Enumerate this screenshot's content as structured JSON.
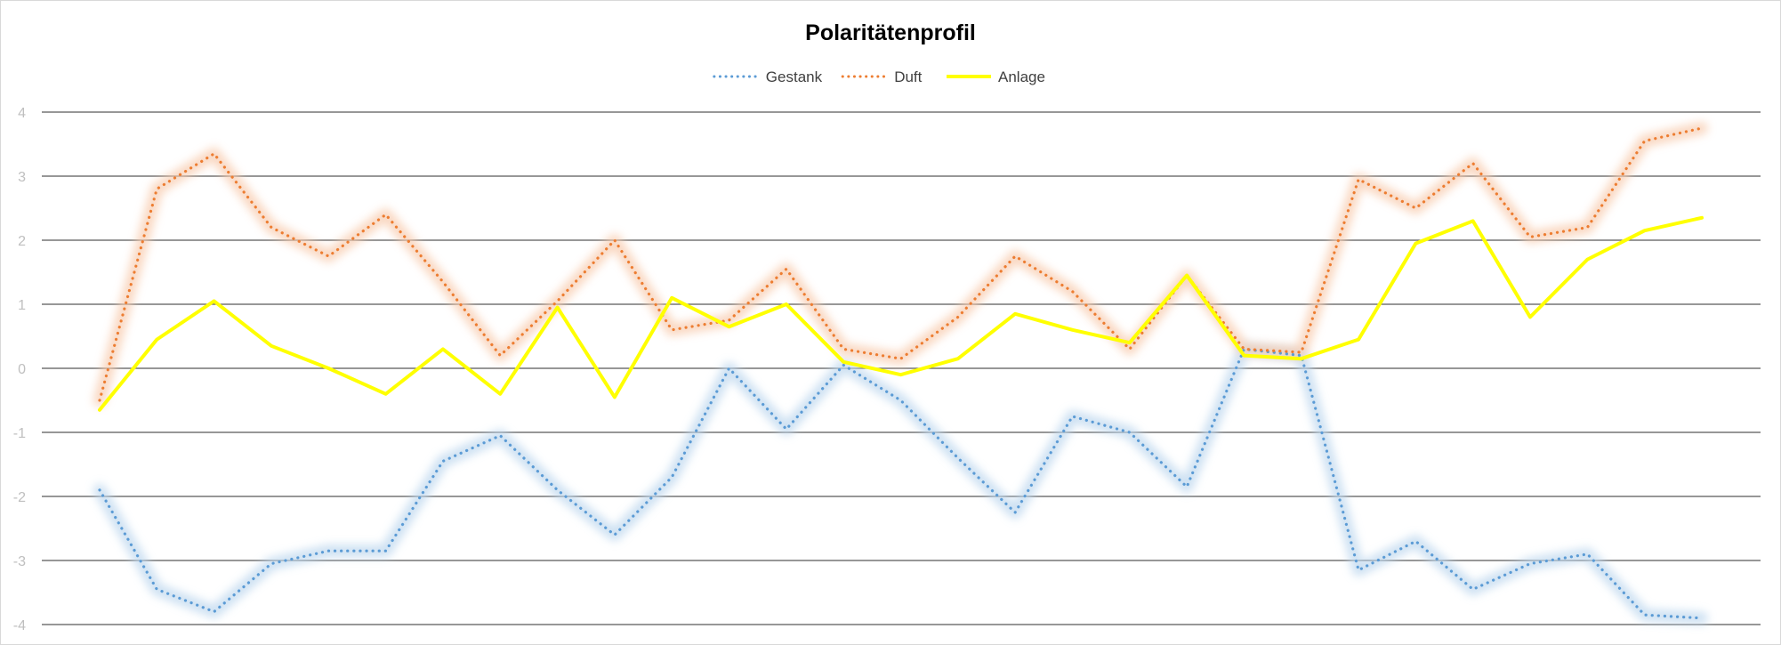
{
  "chart_data": {
    "type": "line",
    "title": "Polaritätenprofil",
    "ylim": [
      -4,
      4
    ],
    "yticks": [
      "4",
      "3",
      "2",
      "1",
      "0",
      "-1",
      "-2",
      "-3",
      "-4"
    ],
    "grid": true,
    "legend_position": "top",
    "x": [
      1,
      2,
      3,
      4,
      5,
      6,
      7,
      8,
      9,
      10,
      11,
      12,
      13,
      14,
      15,
      16,
      17,
      18,
      19,
      20,
      21,
      22,
      23,
      24,
      25,
      26,
      27,
      28,
      29
    ],
    "series": [
      {
        "name": "Gestank",
        "color": "#5b9bd5",
        "style": "dotted",
        "glow": "#bdd7ee",
        "values": [
          -1.9,
          -3.45,
          -3.8,
          -3.05,
          -2.85,
          -2.85,
          -1.45,
          -1.05,
          -1.9,
          -2.6,
          -1.7,
          0.0,
          -0.95,
          0.05,
          -0.5,
          -1.4,
          -2.25,
          -0.75,
          -1.0,
          -1.85,
          0.3,
          0.2,
          -3.15,
          -2.7,
          -3.45,
          -3.05,
          -2.9,
          -3.85,
          -3.9
        ]
      },
      {
        "name": "Duft",
        "color": "#ed7d31",
        "style": "dotted",
        "glow": "#f8cbad",
        "values": [
          -0.5,
          2.8,
          3.35,
          2.2,
          1.75,
          2.4,
          1.35,
          0.2,
          1.05,
          2.0,
          0.6,
          0.75,
          1.55,
          0.3,
          0.15,
          0.8,
          1.75,
          1.2,
          0.3,
          1.45,
          0.3,
          0.25,
          2.95,
          2.5,
          3.2,
          2.05,
          2.2,
          3.55,
          3.75
        ]
      },
      {
        "name": "Anlage",
        "color": "#ffff00",
        "style": "solid",
        "glow": "",
        "values": [
          -0.65,
          0.45,
          1.05,
          0.35,
          0.0,
          -0.4,
          0.3,
          -0.4,
          0.95,
          -0.45,
          1.1,
          0.65,
          1.0,
          0.1,
          -0.1,
          0.15,
          0.85,
          0.6,
          0.4,
          1.45,
          0.2,
          0.15,
          0.45,
          1.95,
          2.3,
          0.8,
          1.7,
          2.15,
          2.35
        ]
      }
    ]
  }
}
